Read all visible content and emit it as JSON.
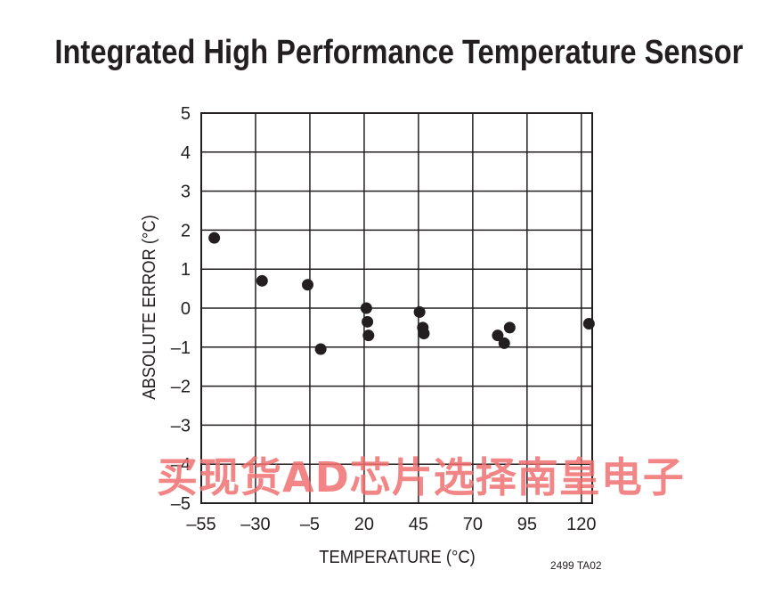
{
  "title": "Integrated High Performance Temperature Sensor",
  "figure_code": "2499 TA02",
  "watermark": "买现货AD芯片选择南皇电子",
  "chart_data": {
    "type": "scatter",
    "xlabel": "TEMPERATURE (°C)",
    "ylabel": "ABSOLUTE ERROR (°C)",
    "xlim": [
      -55,
      125
    ],
    "ylim": [
      -5,
      5
    ],
    "x_ticks": [
      -55,
      -30,
      -5,
      20,
      45,
      70,
      95,
      120
    ],
    "x_tick_labels": [
      "–55",
      "–30",
      "–5",
      "20",
      "45",
      "70",
      "95",
      "120"
    ],
    "y_ticks": [
      5,
      4,
      3,
      2,
      1,
      0,
      -1,
      -2,
      -3,
      -4,
      -5
    ],
    "y_tick_labels": [
      "5",
      "4",
      "3",
      "2",
      "1",
      "0",
      "–1",
      "–2",
      "–3",
      "–4",
      "–5"
    ],
    "grid": true,
    "point_color": "#231f20",
    "points": [
      {
        "x": -49,
        "y": 1.8
      },
      {
        "x": -27,
        "y": 0.7
      },
      {
        "x": -6,
        "y": 0.6
      },
      {
        "x": 0,
        "y": -1.05
      },
      {
        "x": 21,
        "y": 0.0
      },
      {
        "x": 21.5,
        "y": -0.35
      },
      {
        "x": 22,
        "y": -0.7
      },
      {
        "x": 45.5,
        "y": -0.1
      },
      {
        "x": 47,
        "y": -0.5
      },
      {
        "x": 47.5,
        "y": -0.65
      },
      {
        "x": 81.5,
        "y": -0.7
      },
      {
        "x": 84.5,
        "y": -0.9
      },
      {
        "x": 87,
        "y": -0.5
      },
      {
        "x": 123.5,
        "y": -0.4
      }
    ]
  }
}
